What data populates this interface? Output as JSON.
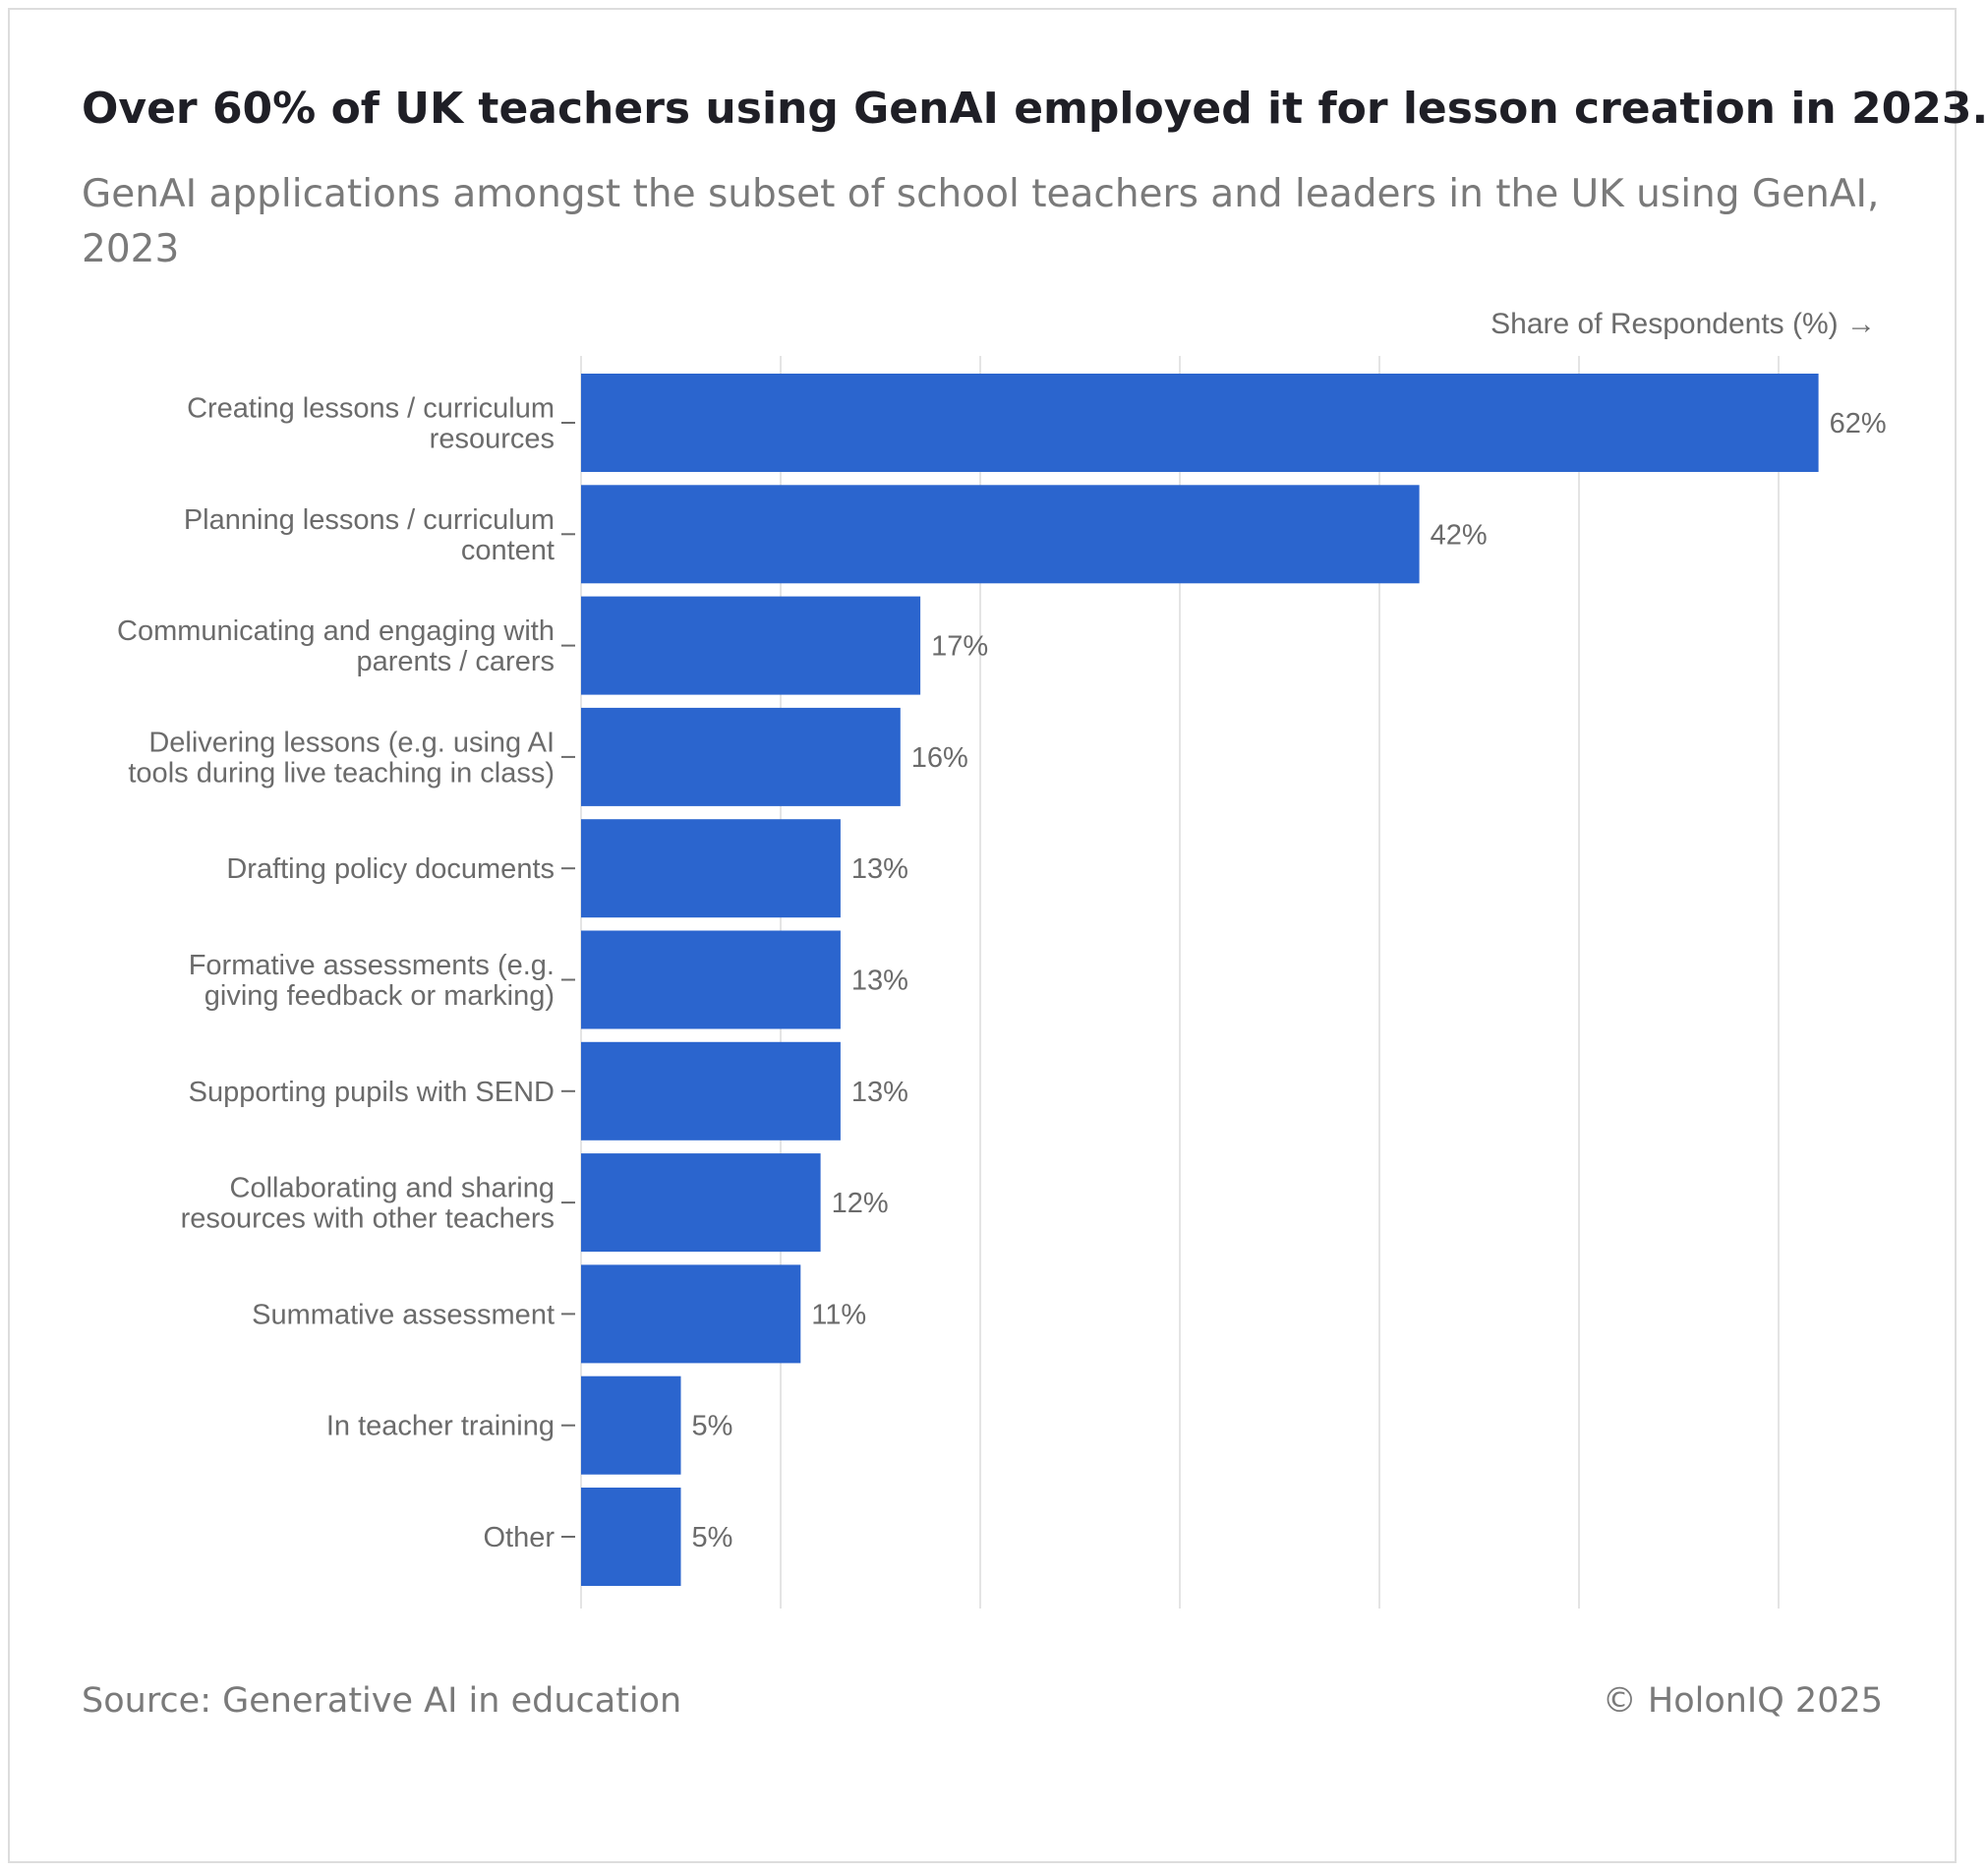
{
  "chart_data": {
    "type": "bar",
    "orientation": "horizontal",
    "title": "Over 60% of UK teachers using GenAI employed it for lesson creation in 2023.",
    "subtitle": "GenAI applications amongst the subset of school teachers and leaders in the UK using GenAI, 2023",
    "xlabel": "Share of Respondents (%) →",
    "ylabel": "",
    "xlim": [
      0,
      65
    ],
    "grid": true,
    "bar_color": "#2b65ce",
    "categories": [
      [
        "Creating lessons / curriculum",
        "resources"
      ],
      [
        "Planning lessons / curriculum",
        "content"
      ],
      [
        "Communicating and engaging with",
        "parents / carers"
      ],
      [
        "Delivering lessons (e.g. using AI",
        "tools during live teaching in class)"
      ],
      [
        "Drafting policy documents"
      ],
      [
        "Formative assessments (e.g.",
        "giving feedback or marking)"
      ],
      [
        "Supporting pupils with SEND"
      ],
      [
        "Collaborating and sharing",
        "resources with other teachers"
      ],
      [
        "Summative assessment"
      ],
      [
        "In teacher training"
      ],
      [
        "Other"
      ]
    ],
    "values": [
      62,
      42,
      17,
      16,
      13,
      13,
      13,
      12,
      11,
      5,
      5
    ],
    "data_labels": [
      "62%",
      "42%",
      "17%",
      "16%",
      "13%",
      "13%",
      "13%",
      "12%",
      "11%",
      "5%",
      "5%"
    ]
  },
  "footer": {
    "source": "Source: Generative AI in education",
    "copyright": "© HolonIQ 2025"
  }
}
